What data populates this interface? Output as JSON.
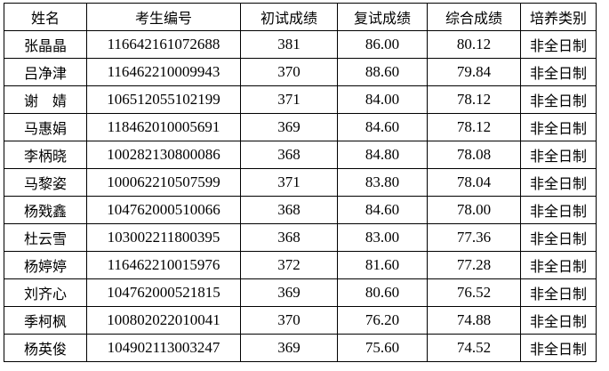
{
  "headers": [
    "姓名",
    "考生编号",
    "初试成绩",
    "复试成绩",
    "综合成绩",
    "培养类别"
  ],
  "rows": [
    [
      "张晶晶",
      "116642161072688",
      "381",
      "86.00",
      "80.12",
      "非全日制"
    ],
    [
      "吕净津",
      "116462210009943",
      "370",
      "88.60",
      "79.84",
      "非全日制"
    ],
    [
      "谢　婧",
      "106512055102199",
      "371",
      "84.00",
      "78.12",
      "非全日制"
    ],
    [
      "马惠娟",
      "118462010005691",
      "369",
      "84.60",
      "78.12",
      "非全日制"
    ],
    [
      "李柄晓",
      "100282130800086",
      "368",
      "84.80",
      "78.08",
      "非全日制"
    ],
    [
      "马黎姿",
      "100062210507599",
      "371",
      "83.80",
      "78.04",
      "非全日制"
    ],
    [
      "杨戣鑫",
      "104762000510066",
      "368",
      "84.60",
      "78.00",
      "非全日制"
    ],
    [
      "杜云雪",
      "103002211800395",
      "368",
      "83.00",
      "77.36",
      "非全日制"
    ],
    [
      "杨婷婷",
      "116462210015976",
      "372",
      "81.60",
      "77.28",
      "非全日制"
    ],
    [
      "刘齐心",
      "104762000521815",
      "369",
      "80.60",
      "76.52",
      "非全日制"
    ],
    [
      "季柯枫",
      "100802022010041",
      "370",
      "76.20",
      "74.88",
      "非全日制"
    ],
    [
      "杨英俊",
      "104902113003247",
      "369",
      "75.60",
      "74.52",
      "非全日制"
    ]
  ]
}
